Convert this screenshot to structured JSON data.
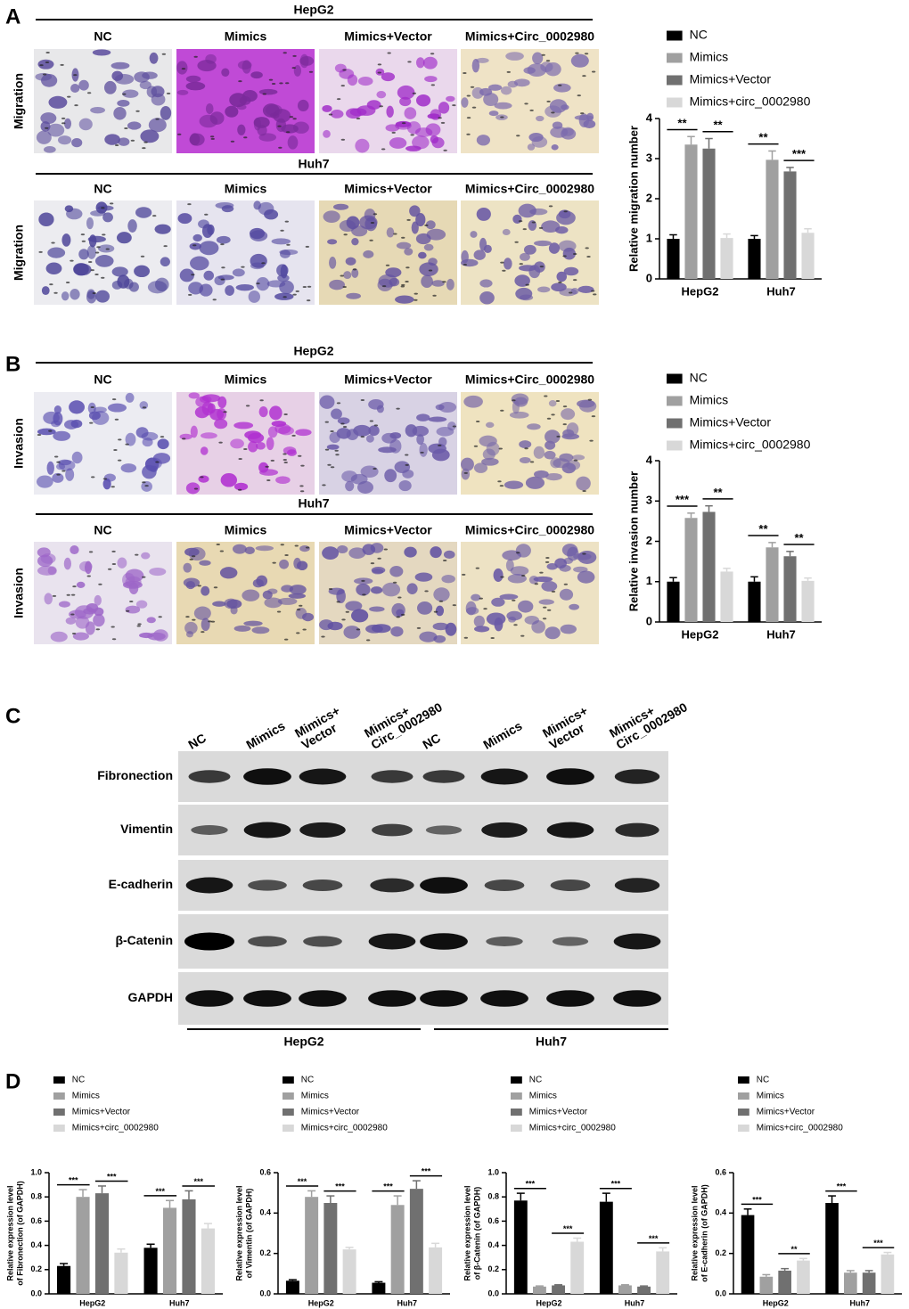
{
  "chart_data": [
    {
      "type": "bar",
      "ylabel": "Relative migration number",
      "categories": [
        "HepG2",
        "Huh7"
      ],
      "series": [
        {
          "name": "NC",
          "color": "#000000",
          "values": [
            1.0,
            1.0
          ],
          "errors": [
            0.1,
            0.08
          ]
        },
        {
          "name": "Mimics",
          "color": "#a0a0a0",
          "values": [
            3.35,
            2.97
          ],
          "errors": [
            0.2,
            0.22
          ]
        },
        {
          "name": "Mimics+Vector",
          "color": "#707070",
          "values": [
            3.25,
            2.68
          ],
          "errors": [
            0.25,
            0.1
          ]
        },
        {
          "name": "Mimics+circ_0002980",
          "color": "#d8d8d8",
          "values": [
            1.02,
            1.15
          ],
          "errors": [
            0.1,
            0.1
          ]
        }
      ],
      "significance": [
        [
          "**",
          "**"
        ],
        [
          "**",
          "***"
        ]
      ],
      "ylim": [
        0,
        4
      ],
      "yticks": [
        0,
        1,
        2,
        3,
        4
      ]
    },
    {
      "type": "bar",
      "ylabel": "Relative invasion number",
      "categories": [
        "HepG2",
        "Huh7"
      ],
      "series": [
        {
          "name": "NC",
          "color": "#000000",
          "values": [
            1.0,
            1.0
          ],
          "errors": [
            0.1,
            0.12
          ]
        },
        {
          "name": "Mimics",
          "color": "#a0a0a0",
          "values": [
            2.58,
            1.85
          ],
          "errors": [
            0.12,
            0.12
          ]
        },
        {
          "name": "Mimics+Vector",
          "color": "#707070",
          "values": [
            2.73,
            1.63
          ],
          "errors": [
            0.15,
            0.12
          ]
        },
        {
          "name": "Mimics+circ_0002980",
          "color": "#d8d8d8",
          "values": [
            1.25,
            1.02
          ],
          "errors": [
            0.08,
            0.07
          ]
        }
      ],
      "significance": [
        [
          "***",
          "**"
        ],
        [
          "**",
          "**"
        ]
      ],
      "ylim": [
        0,
        4
      ],
      "yticks": [
        0,
        1,
        2,
        3,
        4
      ]
    },
    {
      "type": "bar",
      "ylabel": [
        "Relative expression level",
        "of Fibronection (of GAPDH)"
      ],
      "categories": [
        "HepG2",
        "Huh7"
      ],
      "series": [
        {
          "name": "NC",
          "color": "#000000",
          "values": [
            0.23,
            0.38
          ],
          "errors": [
            0.02,
            0.03
          ]
        },
        {
          "name": "Mimics",
          "color": "#a0a0a0",
          "values": [
            0.8,
            0.71
          ],
          "errors": [
            0.06,
            0.06
          ]
        },
        {
          "name": "Mimics+Vector",
          "color": "#707070",
          "values": [
            0.83,
            0.78
          ],
          "errors": [
            0.06,
            0.07
          ]
        },
        {
          "name": "Mimics+circ_0002980",
          "color": "#d8d8d8",
          "values": [
            0.34,
            0.54
          ],
          "errors": [
            0.03,
            0.04
          ]
        }
      ],
      "significance": [
        [
          "***",
          "***"
        ],
        [
          "***",
          "***"
        ]
      ],
      "ylim": [
        0,
        1
      ],
      "yticks": [
        {
          "value": 0,
          "label": "0.0"
        },
        0.2,
        0.4,
        0.6,
        0.8,
        {
          "value": 1,
          "label": "1.0"
        }
      ]
    },
    {
      "type": "bar",
      "ylabel": [
        "Relative expression level",
        "of Vimentin (of GAPDH)"
      ],
      "categories": [
        "HepG2",
        "Huh7"
      ],
      "series": [
        {
          "name": "NC",
          "color": "#000000",
          "values": [
            0.065,
            0.055
          ],
          "errors": [
            0.005,
            0.005
          ]
        },
        {
          "name": "Mimics",
          "color": "#a0a0a0",
          "values": [
            0.48,
            0.44
          ],
          "errors": [
            0.03,
            0.045
          ]
        },
        {
          "name": "Mimics+Vector",
          "color": "#707070",
          "values": [
            0.45,
            0.52
          ],
          "errors": [
            0.035,
            0.04
          ]
        },
        {
          "name": "Mimics+circ_0002980",
          "color": "#d8d8d8",
          "values": [
            0.22,
            0.23
          ],
          "errors": [
            0.01,
            0.02
          ]
        }
      ],
      "significance": [
        [
          "***",
          "***"
        ],
        [
          "***",
          "***"
        ]
      ],
      "ylim": [
        0,
        0.6
      ],
      "yticks": [
        {
          "value": 0,
          "label": "0.0"
        },
        0.2,
        0.4,
        0.6
      ]
    },
    {
      "type": "bar",
      "ylabel": [
        "Relative expression level",
        "of β-Catenin (of GAPDH)"
      ],
      "categories": [
        "HepG2",
        "Huh7"
      ],
      "series": [
        {
          "name": "NC",
          "color": "#000000",
          "values": [
            0.77,
            0.76
          ],
          "errors": [
            0.06,
            0.07
          ]
        },
        {
          "name": "Mimics",
          "color": "#a0a0a0",
          "values": [
            0.06,
            0.07
          ],
          "errors": [
            0.005,
            0.005
          ]
        },
        {
          "name": "Mimics+Vector",
          "color": "#707070",
          "values": [
            0.07,
            0.06
          ],
          "errors": [
            0.005,
            0.005
          ]
        },
        {
          "name": "Mimics+circ_0002980",
          "color": "#d8d8d8",
          "values": [
            0.43,
            0.35
          ],
          "errors": [
            0.03,
            0.03
          ]
        }
      ],
      "significance": [
        [
          "***",
          "***"
        ],
        [
          "***",
          "***"
        ]
      ],
      "ylim": [
        0,
        1
      ],
      "yticks": [
        {
          "value": 0,
          "label": "0.0"
        },
        0.2,
        0.4,
        0.6,
        0.8,
        {
          "value": 1,
          "label": "1.0"
        }
      ]
    },
    {
      "type": "bar",
      "ylabel": [
        "Relative expression level",
        "of E-cadherin (of GAPDH)"
      ],
      "categories": [
        "HepG2",
        "Huh7"
      ],
      "series": [
        {
          "name": "NC",
          "color": "#000000",
          "values": [
            0.39,
            0.45
          ],
          "errors": [
            0.03,
            0.035
          ]
        },
        {
          "name": "Mimics",
          "color": "#a0a0a0",
          "values": [
            0.085,
            0.105
          ],
          "errors": [
            0.01,
            0.01
          ]
        },
        {
          "name": "Mimics+Vector",
          "color": "#707070",
          "values": [
            0.115,
            0.105
          ],
          "errors": [
            0.01,
            0.01
          ]
        },
        {
          "name": "Mimics+circ_0002980",
          "color": "#d8d8d8",
          "values": [
            0.165,
            0.195
          ],
          "errors": [
            0.01,
            0.01
          ]
        }
      ],
      "significance": [
        [
          "***",
          "**"
        ],
        [
          "***",
          "***"
        ]
      ],
      "ylim": [
        0,
        0.6
      ],
      "yticks": [
        {
          "value": 0,
          "label": "0.0"
        },
        0.2,
        0.4,
        0.6
      ]
    }
  ],
  "panel_a": {
    "label": "A",
    "rows": [
      {
        "cell_line": "HepG2",
        "assay": "Migration",
        "columns": [
          "NC",
          "Mimics",
          "Mimics+Vector",
          "Mimics+Circ_0002980"
        ]
      },
      {
        "cell_line": "Huh7",
        "assay": "Migration",
        "columns": [
          "NC",
          "Mimics",
          "Mimics+Vector",
          "Mimics+Circ_0002980"
        ]
      }
    ]
  },
  "panel_b": {
    "label": "B",
    "rows": [
      {
        "cell_line": "HepG2",
        "assay": "Invasion",
        "columns": [
          "NC",
          "Mimics",
          "Mimics+Vector",
          "Mimics+Circ_0002980"
        ]
      },
      {
        "cell_line": "Huh7",
        "assay": "Invasion",
        "columns": [
          "NC",
          "Mimics",
          "Mimics+Vector",
          "Mimics+Circ_0002980"
        ]
      }
    ]
  },
  "panel_c": {
    "label": "C",
    "lanes": [
      [
        "NC"
      ],
      [
        "Mimics"
      ],
      [
        "Mimics+",
        "Vector"
      ],
      [
        "Mimics+",
        "Circ_0002980"
      ],
      [
        "NC"
      ],
      [
        "Mimics"
      ],
      [
        "Mimics+",
        "Vector"
      ],
      [
        "Mimics+",
        "Circ_0002980"
      ]
    ],
    "proteins": [
      "Fibronection",
      "Vimentin",
      "E-cadherin",
      "β-Catenin",
      "GAPDH"
    ],
    "groups": [
      "HepG2",
      "Huh7"
    ]
  },
  "panel_d": {
    "label": "D"
  }
}
